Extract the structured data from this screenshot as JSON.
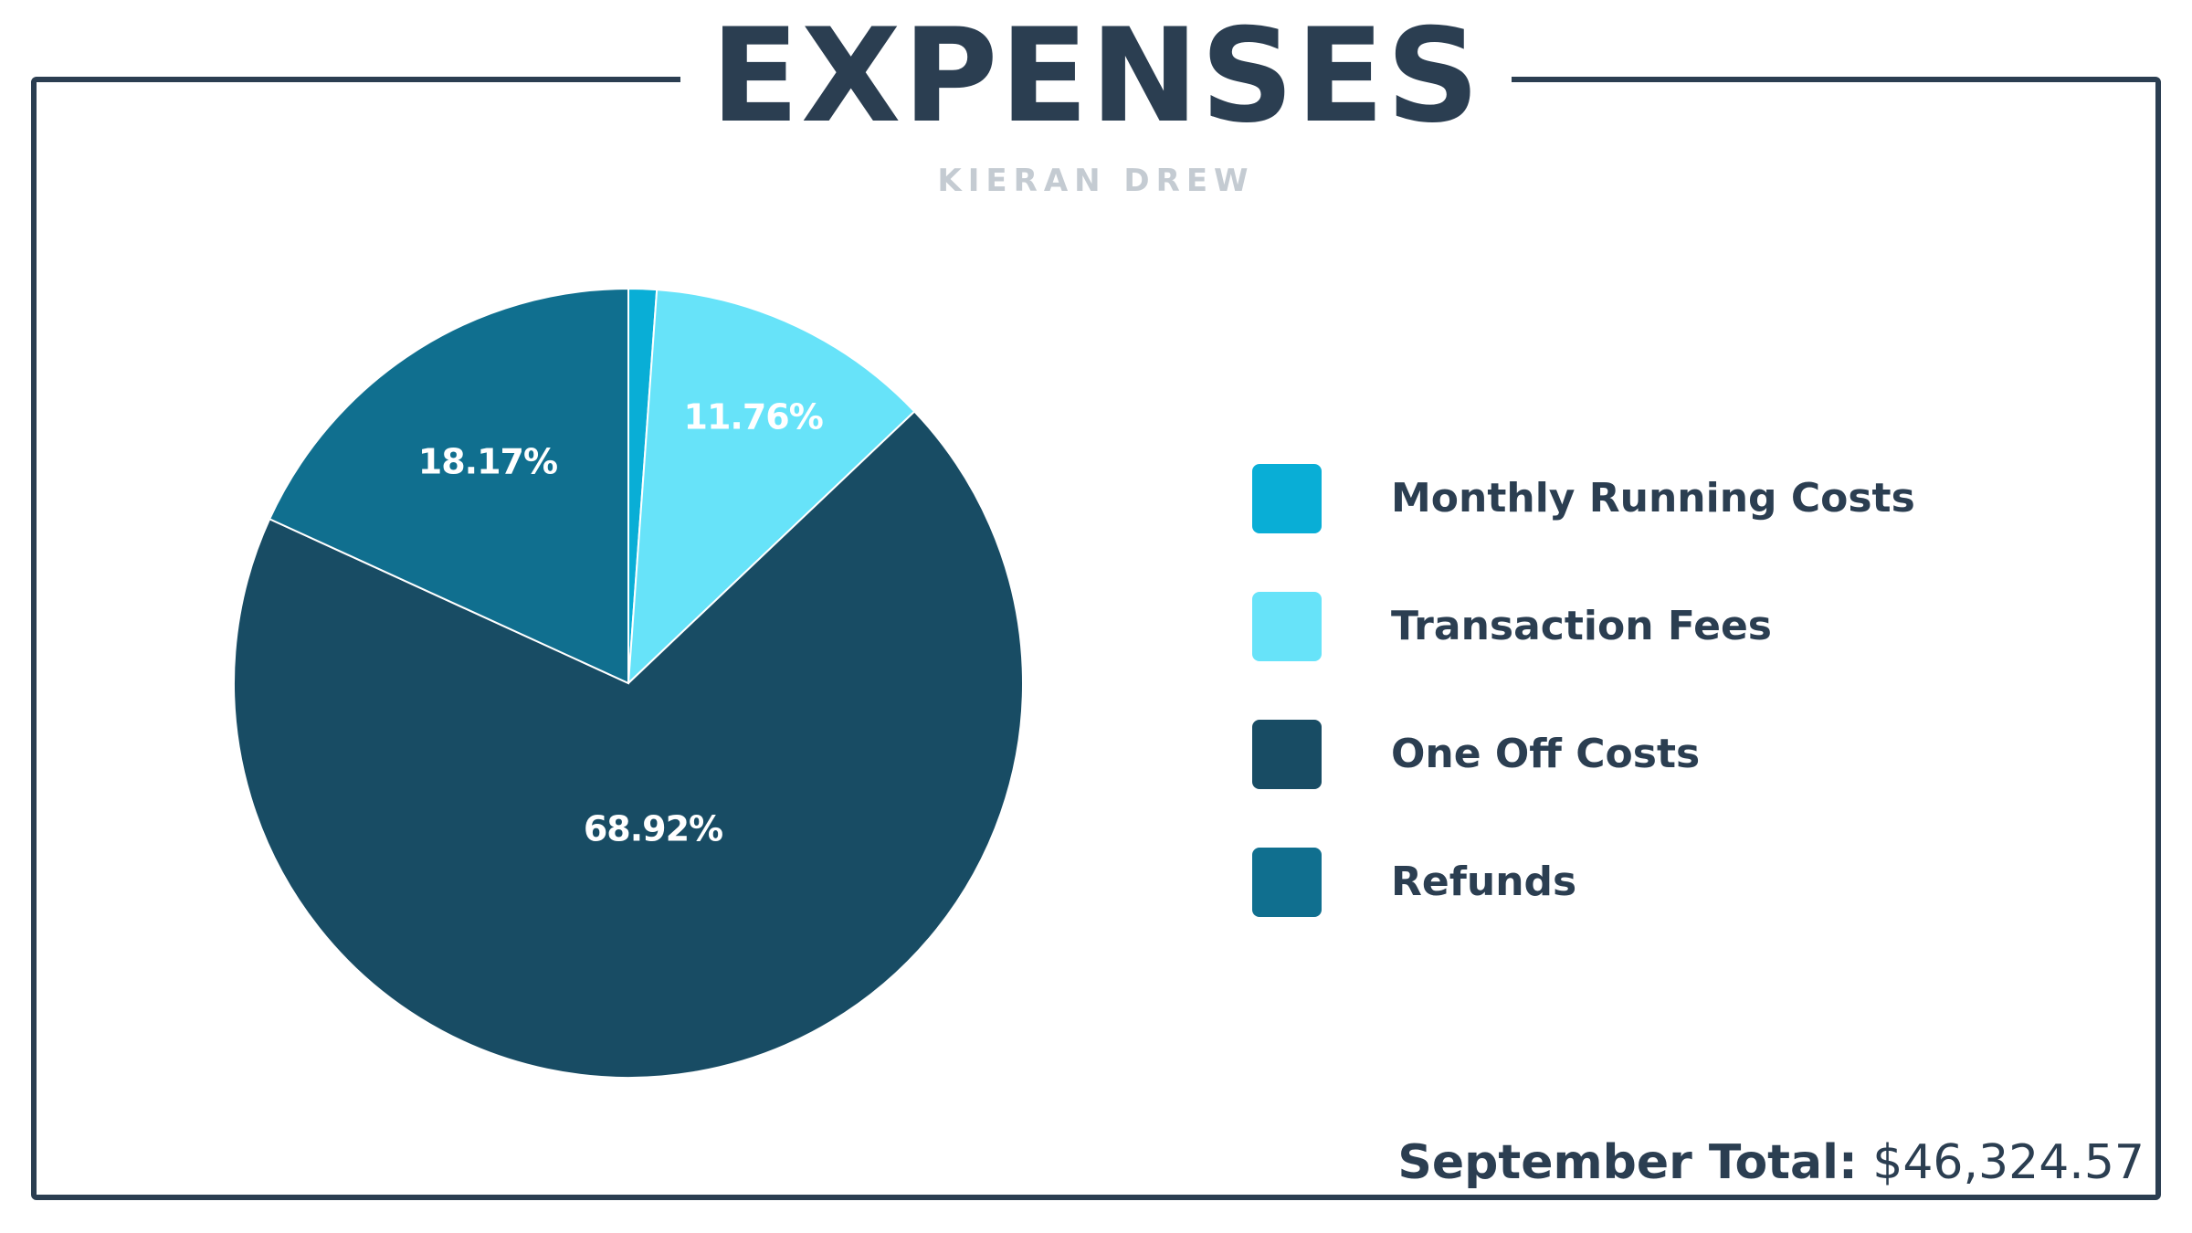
{
  "header": {
    "title": "EXPENSES",
    "subtitle": "KIERAN DREW"
  },
  "chart_data": {
    "type": "pie",
    "title": "EXPENSES",
    "subtitle": "KIERAN DREW",
    "categories": [
      "Monthly Running Costs",
      "Transaction Fees",
      "One Off Costs",
      "Refunds"
    ],
    "values": [
      1.15,
      11.76,
      68.92,
      18.17
    ],
    "data_labels": [
      "",
      "11.76%",
      "68.92%",
      "18.17%"
    ],
    "colors": [
      "#09aed6",
      "#67e3f9",
      "#184c64",
      "#106f8f"
    ],
    "legend_position": "right",
    "unit": "%"
  },
  "footer": {
    "total_label": "September Total:",
    "total_value": "$46,324.57"
  },
  "colors": {
    "text": "#2b3e51",
    "subtitle": "#c4cbd2",
    "frame": "#2b3e51"
  }
}
